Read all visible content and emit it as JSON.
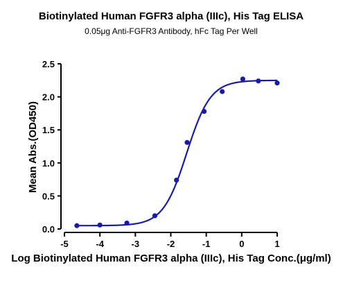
{
  "colors": {
    "series": "#1a1aa8",
    "axis": "#000000",
    "background": "#ffffff"
  },
  "chart_data": {
    "type": "scatter",
    "title": "Biotinylated Human FGFR3 alpha (IIIc), His Tag ELISA",
    "subtitle": "0.05μg  Anti-FGFR3 Antibody, hFc Tag Per Well",
    "xlabel": "Log Biotinylated Human FGFR3 alpha (IIIc), His Tag Conc.(μg/ml)",
    "ylabel": "Mean Abs.(OD450)",
    "xlim": [
      -5,
      1
    ],
    "ylim": [
      0,
      2.5
    ],
    "x_ticks": [
      "-5",
      "-4",
      "-3",
      "-2",
      "-1",
      "0",
      "1"
    ],
    "y_ticks": [
      "0.0",
      "0.5",
      "1.0",
      "1.5",
      "2.0",
      "2.5"
    ],
    "grid": false,
    "series": [
      {
        "x": [
          -4.65,
          -4.0,
          -3.24,
          -2.45,
          -1.84,
          -1.54,
          -1.06,
          -0.55,
          0.03,
          0.47,
          1.0
        ],
        "y": [
          0.05,
          0.06,
          0.09,
          0.2,
          0.74,
          1.31,
          1.78,
          2.08,
          2.27,
          2.24,
          2.21
        ],
        "fit": "4PL",
        "fit_params": {
          "bottom": 0.05,
          "top": 2.25,
          "log_ec50": -1.55,
          "hill_slope": 1.3
        }
      }
    ]
  }
}
